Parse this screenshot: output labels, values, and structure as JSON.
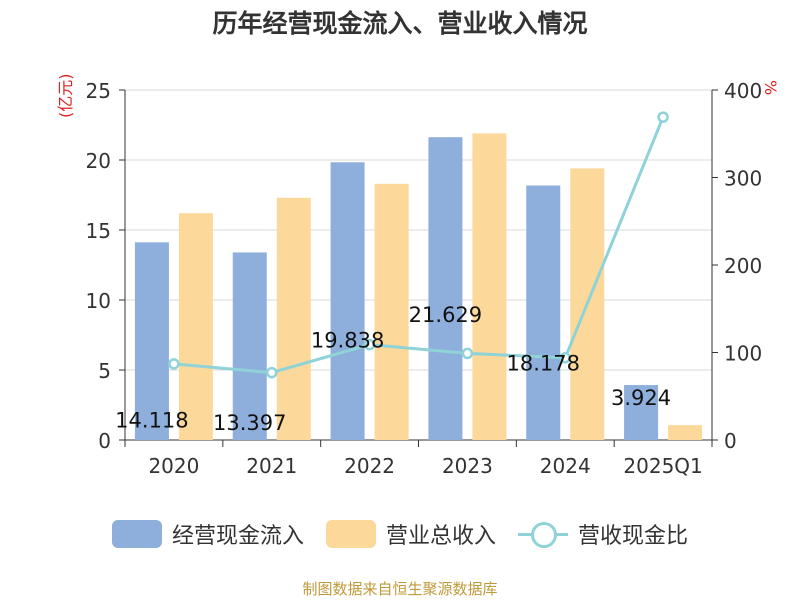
{
  "page": {
    "title": "历年经营现金流入、营业收入情况",
    "source": "制图数据来自恒生聚源数据库"
  },
  "colors": {
    "cash_inflow": "#8eaedb",
    "revenue": "#fdd89b",
    "ratio": "#8fd3d8",
    "unit": "#e02020",
    "source": "#c09a3a",
    "text": "#333333"
  },
  "chart_data": {
    "type": "bar",
    "title": "历年经营现金流入、营业收入情况",
    "categories": [
      "2020",
      "2021",
      "2022",
      "2023",
      "2024",
      "2025Q1"
    ],
    "y_left": {
      "label": "(亿元)",
      "lim": [
        0,
        25
      ],
      "ticks": [
        "0",
        "5",
        "10",
        "15",
        "20",
        "25"
      ]
    },
    "y_right": {
      "label": "%",
      "lim": [
        0,
        400
      ],
      "ticks": [
        "0",
        "100",
        "200",
        "300",
        "400"
      ]
    },
    "series": [
      {
        "name": "经营现金流入",
        "type": "bar",
        "axis": "left",
        "values": [
          14.118,
          13.397,
          19.838,
          21.629,
          18.178,
          3.924
        ]
      },
      {
        "name": "营业总收入",
        "type": "bar",
        "axis": "left",
        "values": [
          16.2,
          17.3,
          18.3,
          21.9,
          19.4,
          1.06
        ]
      },
      {
        "name": "营收现金比",
        "type": "line",
        "axis": "right",
        "values": [
          87,
          77,
          109,
          99,
          94,
          369
        ]
      }
    ],
    "data_labels": [
      "14.118",
      "13.397",
      "19.838",
      "21.629",
      "18.178",
      "3.924"
    ],
    "grid": true,
    "legend_position": "bottom"
  }
}
